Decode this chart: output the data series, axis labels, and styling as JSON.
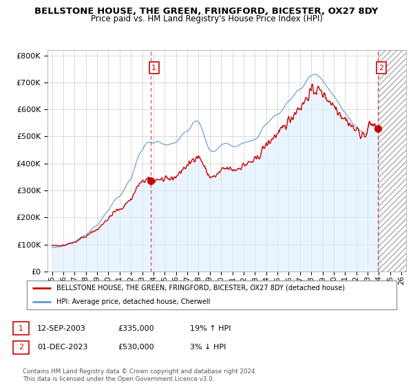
{
  "title": "BELLSTONE HOUSE, THE GREEN, FRINGFORD, BICESTER, OX27 8DY",
  "subtitle": "Price paid vs. HM Land Registry's House Price Index (HPI)",
  "legend_line1": "BELLSTONE HOUSE, THE GREEN, FRINGFORD, BICESTER, OX27 8DY (detached house)",
  "legend_line2": "HPI: Average price, detached house, Cherwell",
  "footer": "Contains HM Land Registry data © Crown copyright and database right 2024.\nThis data is licensed under the Open Government Licence v3.0.",
  "point1_label": "1",
  "point1_date": "12-SEP-2003",
  "point1_price": "£335,000",
  "point1_hpi": "19% ↑ HPI",
  "point1_x": 2003.75,
  "point1_y": 335000,
  "point2_label": "2",
  "point2_date": "01-DEC-2023",
  "point2_price": "£530,000",
  "point2_hpi": "3% ↓ HPI",
  "point2_x": 2023.917,
  "point2_y": 530000,
  "red_color": "#cc0000",
  "blue_color": "#6699cc",
  "fill_color": "#ddeeff",
  "hatch_color": "#aaaaaa",
  "background_color": "#ffffff",
  "grid_color": "#cccccc",
  "ylim": [
    0,
    820000
  ],
  "xlim": [
    1994.6,
    2026.4
  ],
  "future_start": 2024.0,
  "yticks": [
    0,
    100000,
    200000,
    300000,
    400000,
    500000,
    600000,
    700000,
    800000
  ],
  "xticks": [
    1995,
    1996,
    1997,
    1998,
    1999,
    2000,
    2001,
    2002,
    2003,
    2004,
    2005,
    2006,
    2007,
    2008,
    2009,
    2010,
    2011,
    2012,
    2013,
    2014,
    2015,
    2016,
    2017,
    2018,
    2019,
    2020,
    2021,
    2022,
    2023,
    2024,
    2025,
    2026
  ],
  "hpi_x": [
    1995.0,
    1995.083,
    1995.167,
    1995.25,
    1995.333,
    1995.417,
    1995.5,
    1995.583,
    1995.667,
    1995.75,
    1995.833,
    1995.917,
    1996.0,
    1996.083,
    1996.167,
    1996.25,
    1996.333,
    1996.417,
    1996.5,
    1996.583,
    1996.667,
    1996.75,
    1996.833,
    1996.917,
    1997.0,
    1997.083,
    1997.167,
    1997.25,
    1997.333,
    1997.417,
    1997.5,
    1997.583,
    1997.667,
    1997.75,
    1997.833,
    1997.917,
    1998.0,
    1998.083,
    1998.167,
    1998.25,
    1998.333,
    1998.417,
    1998.5,
    1998.583,
    1998.667,
    1998.75,
    1998.833,
    1998.917,
    1999.0,
    1999.083,
    1999.167,
    1999.25,
    1999.333,
    1999.417,
    1999.5,
    1999.583,
    1999.667,
    1999.75,
    1999.833,
    1999.917,
    2000.0,
    2000.083,
    2000.167,
    2000.25,
    2000.333,
    2000.417,
    2000.5,
    2000.583,
    2000.667,
    2000.75,
    2000.833,
    2000.917,
    2001.0,
    2001.083,
    2001.167,
    2001.25,
    2001.333,
    2001.417,
    2001.5,
    2001.583,
    2001.667,
    2001.75,
    2001.833,
    2001.917,
    2002.0,
    2002.083,
    2002.167,
    2002.25,
    2002.333,
    2002.417,
    2002.5,
    2002.583,
    2002.667,
    2002.75,
    2002.833,
    2002.917,
    2003.0,
    2003.083,
    2003.167,
    2003.25,
    2003.333,
    2003.417,
    2003.5,
    2003.583,
    2003.667,
    2003.75,
    2003.833,
    2003.917,
    2004.0,
    2004.083,
    2004.167,
    2004.25,
    2004.333,
    2004.417,
    2004.5,
    2004.583,
    2004.667,
    2004.75,
    2004.833,
    2004.917,
    2005.0,
    2005.083,
    2005.167,
    2005.25,
    2005.333,
    2005.417,
    2005.5,
    2005.583,
    2005.667,
    2005.75,
    2005.833,
    2005.917,
    2006.0,
    2006.083,
    2006.167,
    2006.25,
    2006.333,
    2006.417,
    2006.5,
    2006.583,
    2006.667,
    2006.75,
    2006.833,
    2006.917,
    2007.0,
    2007.083,
    2007.167,
    2007.25,
    2007.333,
    2007.417,
    2007.5,
    2007.583,
    2007.667,
    2007.75,
    2007.833,
    2007.917,
    2008.0,
    2008.083,
    2008.167,
    2008.25,
    2008.333,
    2008.417,
    2008.5,
    2008.583,
    2008.667,
    2008.75,
    2008.833,
    2008.917,
    2009.0,
    2009.083,
    2009.167,
    2009.25,
    2009.333,
    2009.417,
    2009.5,
    2009.583,
    2009.667,
    2009.75,
    2009.833,
    2009.917,
    2010.0,
    2010.083,
    2010.167,
    2010.25,
    2010.333,
    2010.417,
    2010.5,
    2010.583,
    2010.667,
    2010.75,
    2010.833,
    2010.917,
    2011.0,
    2011.083,
    2011.167,
    2011.25,
    2011.333,
    2011.417,
    2011.5,
    2011.583,
    2011.667,
    2011.75,
    2011.833,
    2011.917,
    2012.0,
    2012.083,
    2012.167,
    2012.25,
    2012.333,
    2012.417,
    2012.5,
    2012.583,
    2012.667,
    2012.75,
    2012.833,
    2012.917,
    2013.0,
    2013.083,
    2013.167,
    2013.25,
    2013.333,
    2013.417,
    2013.5,
    2013.583,
    2013.667,
    2013.75,
    2013.833,
    2013.917,
    2014.0,
    2014.083,
    2014.167,
    2014.25,
    2014.333,
    2014.417,
    2014.5,
    2014.583,
    2014.667,
    2014.75,
    2014.833,
    2014.917,
    2015.0,
    2015.083,
    2015.167,
    2015.25,
    2015.333,
    2015.417,
    2015.5,
    2015.583,
    2015.667,
    2015.75,
    2015.833,
    2015.917,
    2016.0,
    2016.083,
    2016.167,
    2016.25,
    2016.333,
    2016.417,
    2016.5,
    2016.583,
    2016.667,
    2016.75,
    2016.833,
    2016.917,
    2017.0,
    2017.083,
    2017.167,
    2017.25,
    2017.333,
    2017.417,
    2017.5,
    2017.583,
    2017.667,
    2017.75,
    2017.833,
    2017.917,
    2018.0,
    2018.083,
    2018.167,
    2018.25,
    2018.333,
    2018.417,
    2018.5,
    2018.583,
    2018.667,
    2018.75,
    2018.833,
    2018.917,
    2019.0,
    2019.083,
    2019.167,
    2019.25,
    2019.333,
    2019.417,
    2019.5,
    2019.583,
    2019.667,
    2019.75,
    2019.833,
    2019.917,
    2020.0,
    2020.083,
    2020.167,
    2020.25,
    2020.333,
    2020.417,
    2020.5,
    2020.583,
    2020.667,
    2020.75,
    2020.833,
    2020.917,
    2021.0,
    2021.083,
    2021.167,
    2021.25,
    2021.333,
    2021.417,
    2021.5,
    2021.583,
    2021.667,
    2021.75,
    2021.833,
    2021.917,
    2022.0,
    2022.083,
    2022.167,
    2022.25,
    2022.333,
    2022.417,
    2022.5,
    2022.583,
    2022.667,
    2022.75,
    2022.833,
    2022.917,
    2023.0,
    2023.083,
    2023.167,
    2023.25,
    2023.333,
    2023.417,
    2023.5,
    2023.583,
    2023.667,
    2023.75,
    2023.833,
    2023.917,
    2024.0,
    2024.083
  ],
  "hpi_y": [
    88000,
    88500,
    89000,
    89500,
    90000,
    90500,
    91000,
    91500,
    92000,
    92500,
    93000,
    93500,
    94000,
    95000,
    96000,
    97500,
    99000,
    100500,
    102000,
    103500,
    105000,
    106500,
    107500,
    108000,
    109000,
    111000,
    113000,
    116000,
    119000,
    122000,
    125000,
    127000,
    129000,
    131000,
    132500,
    133500,
    135000,
    138000,
    141000,
    144000,
    148000,
    152000,
    156000,
    159000,
    162000,
    165000,
    167000,
    168500,
    170000,
    174000,
    178000,
    183000,
    188000,
    194000,
    200000,
    205000,
    210000,
    215000,
    219000,
    222000,
    225000,
    231000,
    237000,
    243000,
    249000,
    255000,
    260000,
    265000,
    269000,
    272000,
    274000,
    276000,
    278000,
    282000,
    287000,
    292000,
    298000,
    304000,
    311000,
    318000,
    324000,
    330000,
    335000,
    339000,
    343000,
    352000,
    362000,
    373000,
    384000,
    396000,
    408000,
    418000,
    427000,
    434000,
    440000,
    444000,
    448000,
    455000,
    462000,
    468000,
    473000,
    476000,
    478000,
    479000,
    479000,
    478000,
    477000,
    476000,
    475000,
    477000,
    479000,
    481000,
    482000,
    481000,
    480000,
    478000,
    476000,
    474000,
    472000,
    471000,
    470000,
    469000,
    469000,
    469000,
    470000,
    471000,
    472000,
    473000,
    474000,
    475000,
    476000,
    477000,
    478000,
    481000,
    485000,
    489000,
    494000,
    499000,
    504000,
    508000,
    512000,
    515000,
    517000,
    518000,
    519000,
    522000,
    526000,
    531000,
    537000,
    543000,
    549000,
    553000,
    556000,
    557000,
    557000,
    556000,
    555000,
    549000,
    542000,
    534000,
    524000,
    514000,
    503000,
    492000,
    481000,
    471000,
    462000,
    455000,
    450000,
    447000,
    445000,
    444000,
    444000,
    445000,
    447000,
    450000,
    453000,
    457000,
    461000,
    464000,
    467000,
    470000,
    472000,
    473000,
    474000,
    474000,
    474000,
    473000,
    472000,
    470000,
    468000,
    466000,
    464000,
    463000,
    462000,
    462000,
    463000,
    464000,
    466000,
    468000,
    470000,
    472000,
    474000,
    475000,
    476000,
    477000,
    478000,
    479000,
    480000,
    481000,
    482000,
    483000,
    484000,
    485000,
    486000,
    487000,
    488000,
    490000,
    493000,
    497000,
    502000,
    508000,
    515000,
    522000,
    529000,
    535000,
    540000,
    543000,
    545000,
    548000,
    551000,
    555000,
    559000,
    563000,
    567000,
    571000,
    574000,
    577000,
    579000,
    580000,
    581000,
    583000,
    585000,
    588000,
    592000,
    597000,
    602000,
    608000,
    614000,
    619000,
    624000,
    628000,
    631000,
    634000,
    637000,
    641000,
    645000,
    650000,
    655000,
    660000,
    665000,
    669000,
    672000,
    674000,
    675000,
    677000,
    679000,
    683000,
    688000,
    694000,
    700000,
    706000,
    712000,
    717000,
    721000,
    724000,
    726000,
    728000,
    729000,
    730000,
    730000,
    729000,
    728000,
    726000,
    723000,
    720000,
    716000,
    712000,
    708000,
    703000,
    698000,
    693000,
    688000,
    683000,
    678000,
    673000,
    668000,
    663000,
    658000,
    654000,
    650000,
    645000,
    640000,
    635000,
    630000,
    624000,
    618000,
    612000,
    606000,
    601000,
    596000,
    592000,
    588000,
    583000,
    578000,
    573000,
    568000,
    563000,
    558000,
    553000,
    548000,
    544000,
    540000,
    537000,
    534000,
    531000,
    528000,
    525000,
    522000,
    519000,
    516000,
    513000,
    511000,
    509000,
    508000,
    507000,
    530000,
    540000,
    545000,
    548000,
    548000,
    546000,
    543000,
    540000,
    536000,
    532000,
    529000,
    526000,
    530000,
    526000
  ]
}
